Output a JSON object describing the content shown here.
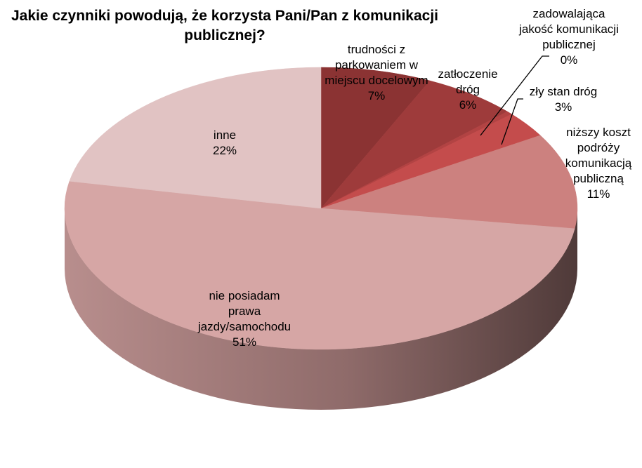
{
  "chart_data": {
    "type": "pie",
    "title_lines": [
      "Jakie czynniki powodują, że korzysta Pani/Pan z komunikacji",
      "publicznej?"
    ],
    "slices": [
      {
        "label_lines": [
          "trudności z",
          "parkowaniem w",
          "miejscu docelowym"
        ],
        "percent_label": "7%",
        "value": 7,
        "color": "#8B3333"
      },
      {
        "label_lines": [
          "zatłoczenie",
          "dróg"
        ],
        "percent_label": "6%",
        "value": 6,
        "color": "#9E3B3B"
      },
      {
        "label_lines": [
          "zadowalająca",
          "jakość komunikacji",
          "publicznej"
        ],
        "percent_label": "0%",
        "value": 0.4,
        "color": "#B24343"
      },
      {
        "label_lines": [
          "zły stan dróg"
        ],
        "percent_label": "3%",
        "value": 3,
        "color": "#C44C4C"
      },
      {
        "label_lines": [
          "niższy koszt",
          "podróży",
          "komunikacją",
          "publiczną"
        ],
        "percent_label": "11%",
        "value": 11,
        "color": "#CC817F"
      },
      {
        "label_lines": [
          "nie posiadam",
          "prawa",
          "jazdy/samochodu"
        ],
        "percent_label": "51%",
        "value": 51,
        "color": "#D6A6A5"
      },
      {
        "label_lines": [
          "inne"
        ],
        "percent_label": "22%",
        "value": 22,
        "color": "#E1C3C3"
      }
    ],
    "legend": "none",
    "style": "3d-exploded-free"
  }
}
